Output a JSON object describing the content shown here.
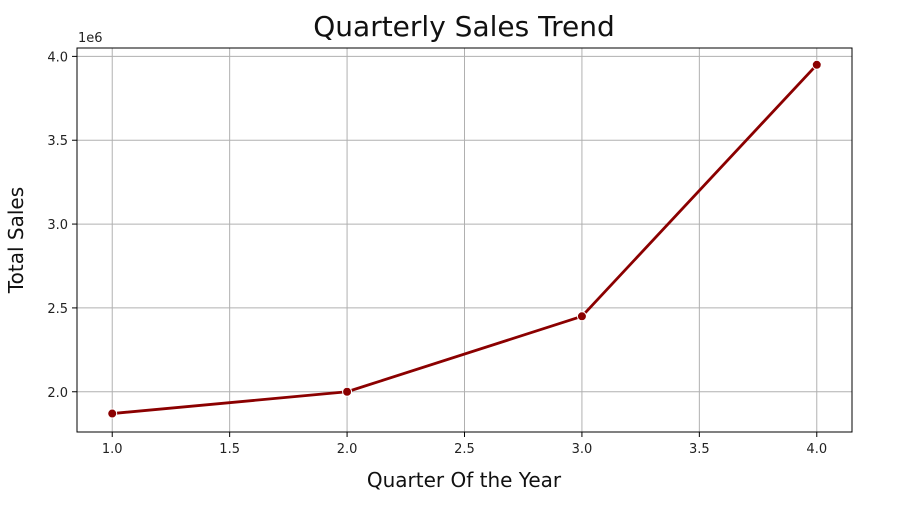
{
  "chart_data": {
    "type": "line",
    "title": "Quarterly Sales Trend",
    "xlabel": "Quarter Of the Year",
    "ylabel": "Total Sales",
    "y_offset_label": "1e6",
    "x": [
      1.0,
      2.0,
      3.0,
      4.0
    ],
    "series": [
      {
        "values": [
          1870000,
          2000000,
          2450000,
          3950000
        ],
        "color": "#8b0000",
        "marker": "circle"
      }
    ],
    "xlim": [
      0.85,
      4.15
    ],
    "ylim": [
      1760000,
      4050000
    ],
    "x_ticks": [
      1.0,
      1.5,
      2.0,
      2.5,
      3.0,
      3.5,
      4.0
    ],
    "x_tick_labels": [
      "1.0",
      "1.5",
      "2.0",
      "2.5",
      "3.0",
      "3.5",
      "4.0"
    ],
    "y_ticks": [
      2000000,
      2500000,
      3000000,
      3500000,
      4000000
    ],
    "y_tick_labels": [
      "2.0",
      "2.5",
      "3.0",
      "3.5",
      "4.0"
    ],
    "grid": true
  }
}
